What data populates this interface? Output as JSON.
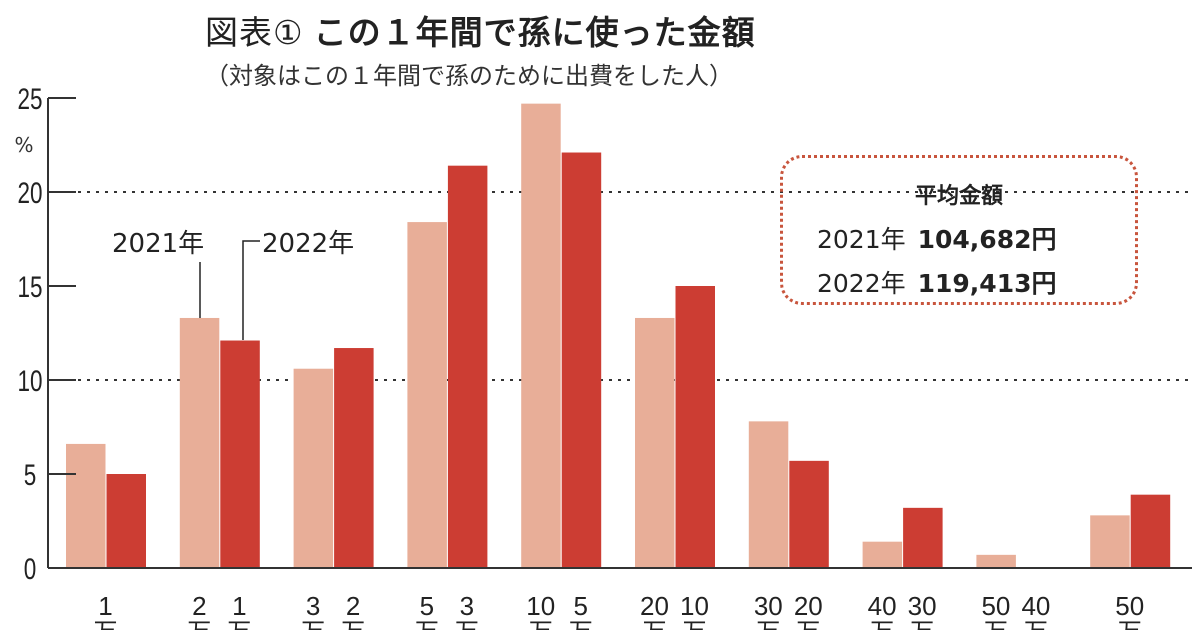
{
  "title_prefix": "図表①",
  "title": "この１年間で孫に使った金額",
  "subtitle": "（対象はこの１年間で孫のために出費をした人）",
  "average_box": {
    "heading": "平均金額",
    "rows": [
      {
        "year": "2021年",
        "value": "104,682円"
      },
      {
        "year": "2022年",
        "value": "119,413円"
      }
    ]
  },
  "colors": {
    "2021": "#e8ae98",
    "2022": "#cc3d33",
    "box_border": "#c8553d"
  },
  "chart_data": {
    "type": "bar",
    "ylabel": "%",
    "ylim": [
      0,
      25
    ],
    "yticks": [
      "0",
      "5",
      "10",
      "15",
      "20",
      "25"
    ],
    "dotted_gridlines_at": [
      10,
      20
    ],
    "categories": [
      [
        "1",
        "万"
      ],
      [
        "2",
        "万",
        "1",
        "万"
      ],
      [
        "3",
        "万",
        "2",
        "万"
      ],
      [
        "5",
        "万",
        "3",
        "万"
      ],
      [
        "10",
        "万",
        "5",
        "万"
      ],
      [
        "20",
        "万",
        "10",
        "万"
      ],
      [
        "30",
        "万",
        "20",
        "万"
      ],
      [
        "40",
        "万",
        "30",
        "万"
      ],
      [
        "50",
        "万",
        "40",
        "万"
      ],
      [
        "50",
        "万"
      ]
    ],
    "series": [
      {
        "name": "2021年",
        "values": [
          6.6,
          13.3,
          10.6,
          18.4,
          24.7,
          13.3,
          7.8,
          1.4,
          0.7,
          2.8
        ]
      },
      {
        "name": "2022年",
        "values": [
          5.0,
          12.1,
          11.7,
          21.4,
          22.1,
          15.0,
          5.7,
          3.2,
          0,
          3.9
        ]
      }
    ]
  }
}
